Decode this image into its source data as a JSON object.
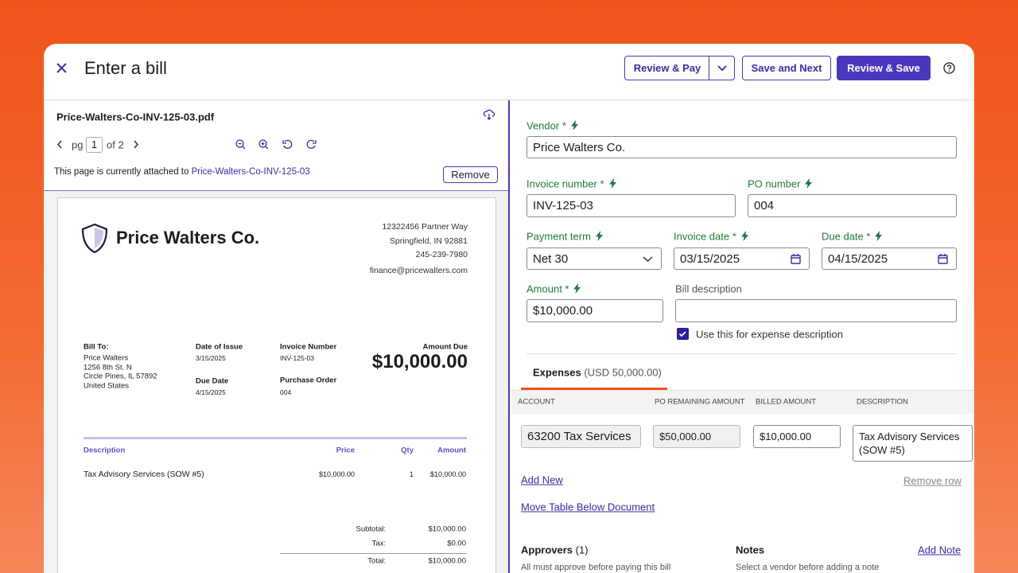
{
  "header": {
    "title": "Enter a bill",
    "review_pay": "Review & Pay",
    "save_next": "Save and Next",
    "review_save": "Review & Save"
  },
  "document": {
    "filename": "Price-Walters-Co-INV-125-03.pdf",
    "page_label": "pg",
    "page_number": "1",
    "page_of": "of 2",
    "attached_text": "This page is currently attached to",
    "attached_link": "Price-Walters-Co-INV-125-03",
    "remove": "Remove"
  },
  "invoice": {
    "company": "Price Walters Co.",
    "address": [
      "12322456 Partner Way",
      "Springfield, IN 92881",
      "245-239-7980",
      "finance@pricewalters.com"
    ],
    "bill_to_label": "Bill To:",
    "bill_to": [
      "Price Walters",
      "1256 8th St. N",
      "Circle Pines, IL  57892",
      "United States"
    ],
    "date_of_issue_label": "Date of Issue",
    "date_of_issue": "3/15/2025",
    "due_date_label": "Due Date",
    "due_date": "4/15/2025",
    "invoice_number_label": "Invoice Number",
    "invoice_number": "INV-125-03",
    "purchase_order_label": "Purchase Order",
    "purchase_order": "004",
    "amount_due_label": "Amount Due",
    "amount_due": "$10,000.00",
    "table": {
      "headers": [
        "Description",
        "Price",
        "Qty",
        "Amount"
      ],
      "rows": [
        [
          "Tax Advisory Services (SOW #5)",
          "$10,000.00",
          "1",
          "$10,000.00"
        ]
      ]
    },
    "totals": [
      [
        "Subtotal:",
        "$10,000.00"
      ],
      [
        "Tax:",
        "$0.00"
      ],
      [
        "Total:",
        "$10,000.00"
      ]
    ]
  },
  "form": {
    "vendor": {
      "label": "Vendor *",
      "value": "Price Walters Co."
    },
    "invoice_number": {
      "label": "Invoice number *",
      "value": "INV-125-03"
    },
    "po_number": {
      "label": "PO number",
      "value": "004"
    },
    "payment_term": {
      "label": "Payment term",
      "value": "Net 30"
    },
    "invoice_date": {
      "label": "Invoice date *",
      "value": "03/15/2025"
    },
    "due_date": {
      "label": "Due date *",
      "value": "04/15/2025"
    },
    "amount": {
      "label": "Amount *",
      "value": "$10,000.00"
    },
    "bill_description": {
      "label": "Bill description"
    },
    "use_for_expense": "Use this for expense description"
  },
  "expenses": {
    "tab": "Expenses",
    "tab_total": "(USD  50,000.00)",
    "headers": [
      "ACCOUNT",
      "PO REMAINING AMOUNT",
      "BILLED AMOUNT",
      "DESCRIPTION"
    ],
    "rows": [
      [
        "63200 Tax Services",
        "$50,000.00",
        "$10,000.00",
        "Tax Advisory Services (SOW #5)"
      ]
    ],
    "add_new": "Add New",
    "remove_row": "Remove row",
    "move_table": "Move Table Below Document"
  },
  "approvers": {
    "title": "Approvers",
    "count": "(1)",
    "note": "All must approve before paying this bill"
  },
  "notes": {
    "title": "Notes",
    "add": "Add Note",
    "note": "Select a vendor before adding a note"
  }
}
